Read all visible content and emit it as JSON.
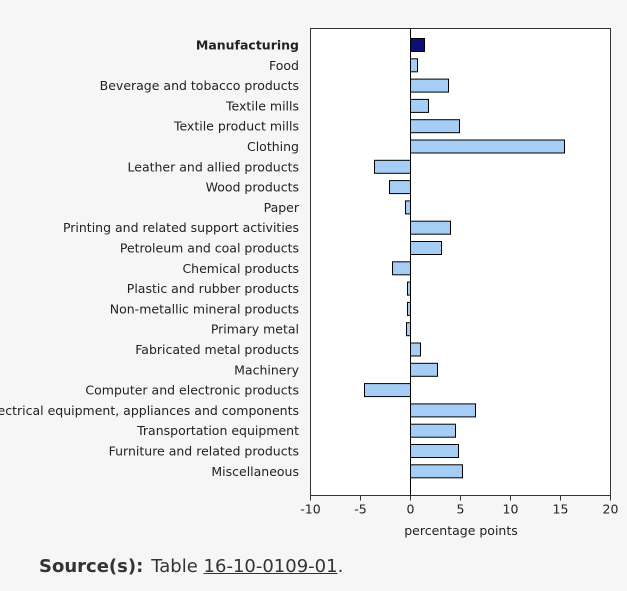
{
  "chart_data": {
    "type": "bar",
    "orientation": "horizontal",
    "categories": [
      "Manufacturing",
      "Food",
      "Beverage and tobacco products",
      "Textile mills",
      "Textile product mills",
      "Clothing",
      "Leather and allied products",
      "Wood products",
      "Paper",
      "Printing and related support activities",
      "Petroleum and coal products",
      "Chemical products",
      "Plastic and rubber products",
      "Non-metallic mineral products",
      "Primary metal",
      "Fabricated metal products",
      "Machinery",
      "Computer and electronic products",
      "Electrical equipment, appliances and components",
      "Transportation equipment",
      "Furniture and related products",
      "Miscellaneous"
    ],
    "values": [
      1.4,
      0.7,
      3.8,
      1.8,
      4.9,
      15.4,
      -3.6,
      -2.1,
      -0.5,
      4.0,
      3.1,
      -1.8,
      -0.3,
      -0.3,
      -0.4,
      1.0,
      2.7,
      -4.6,
      6.5,
      4.5,
      4.8,
      5.2
    ],
    "highlight_index": 0,
    "xlabel": "percentage points",
    "ylabel": "",
    "xlim": [
      -10,
      20
    ],
    "xticks": [
      -10,
      -5,
      0,
      5,
      10,
      15,
      20
    ],
    "grid": false,
    "colors": {
      "bar": "#a6cdf5",
      "bar_highlight": "#0d0f75",
      "bar_edge": "#000000"
    }
  },
  "source": {
    "label": "Source(s):",
    "text": "Table",
    "link": "16-10-0109-01",
    "end": "."
  }
}
